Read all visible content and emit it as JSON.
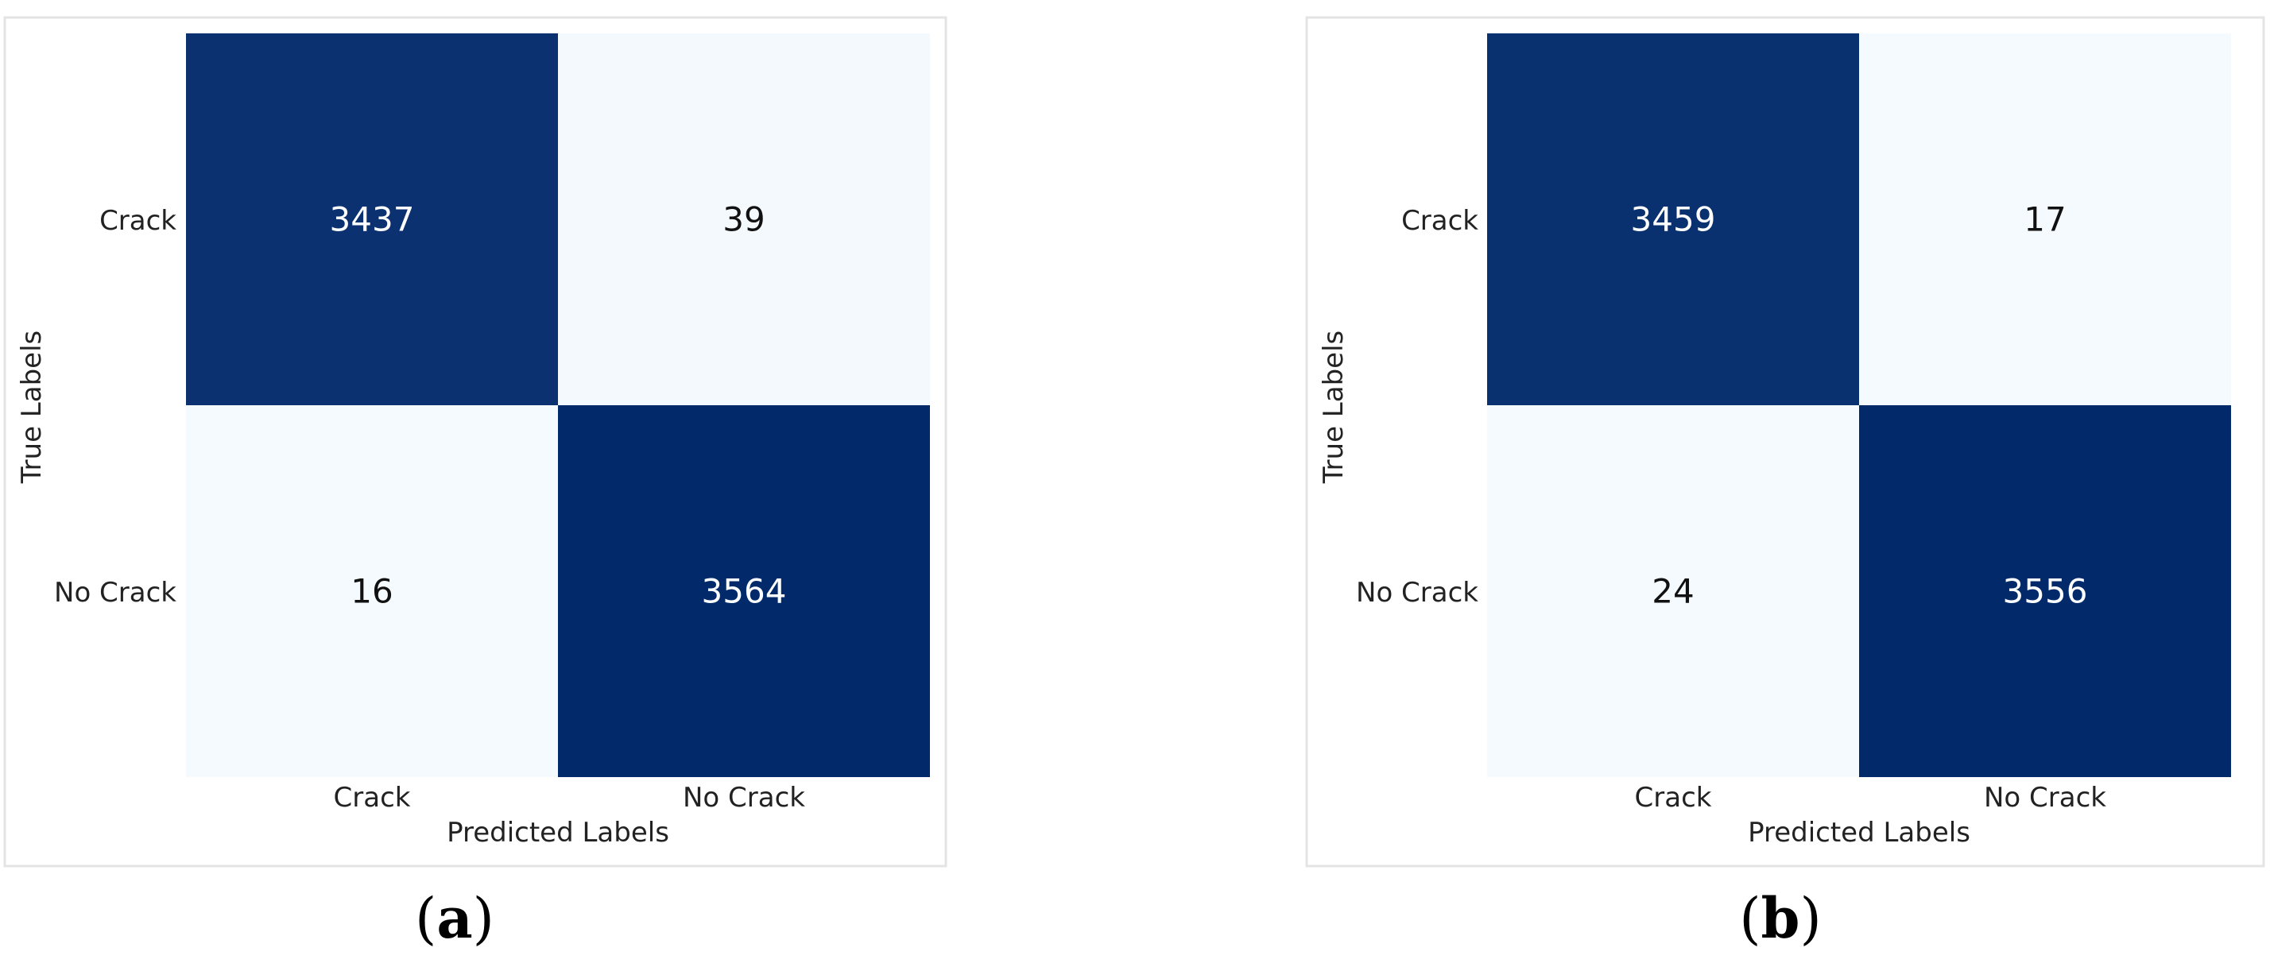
{
  "chart_data": [
    {
      "type": "heatmap",
      "caption_open": "(",
      "caption_letter": "a",
      "caption_close": ")",
      "xlabel": "Predicted Labels",
      "ylabel": "True Labels",
      "x_categories": [
        "Crack",
        "No Crack"
      ],
      "y_categories": [
        "Crack",
        "No Crack"
      ],
      "values": [
        [
          3437,
          39
        ],
        [
          16,
          3564
        ]
      ],
      "colormap": "Blues",
      "colors": {
        "high": "#022a6b",
        "low": "#f5fafe"
      }
    },
    {
      "type": "heatmap",
      "caption_open": "(",
      "caption_letter": "b",
      "caption_close": ")",
      "xlabel": "Predicted Labels",
      "ylabel": "True Labels",
      "x_categories": [
        "Crack",
        "No Crack"
      ],
      "y_categories": [
        "Crack",
        "No Crack"
      ],
      "values": [
        [
          3459,
          17
        ],
        [
          24,
          3556
        ]
      ],
      "colormap": "Blues",
      "colors": {
        "high": "#022a6b",
        "low": "#f5fafe"
      }
    }
  ]
}
